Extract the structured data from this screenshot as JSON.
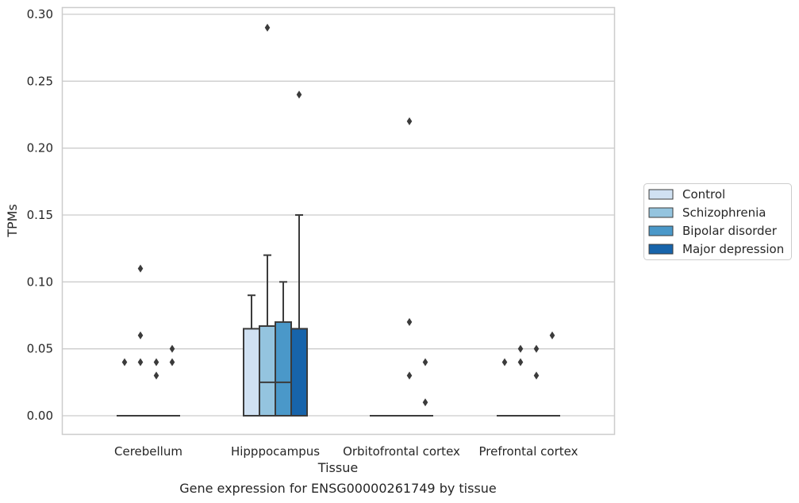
{
  "chart_data": {
    "type": "box",
    "title": "Gene expression for ENSG00000261749 by tissue",
    "xlabel": "Tissue",
    "ylabel": "TPMs",
    "ylim": [
      -0.014,
      0.305
    ],
    "yticks": [
      0.0,
      0.05,
      0.1,
      0.15,
      0.2,
      0.25,
      0.3
    ],
    "ytick_labels": [
      "0.00",
      "0.05",
      "0.10",
      "0.15",
      "0.20",
      "0.25",
      "0.30"
    ],
    "grid": true,
    "legend_position": "right",
    "categories": [
      "Cerebellum",
      "Hipppocampus",
      "Orbitofrontal cortex",
      "Prefrontal cortex"
    ],
    "series": [
      {
        "name": "Control",
        "color": "#d0e1f2",
        "boxes": [
          {
            "q1": 0,
            "median": 0,
            "q3": 0,
            "whisker_low": 0,
            "whisker_high": 0,
            "outliers": [
              0.04
            ]
          },
          {
            "q1": 0,
            "median": 0,
            "q3": 0.065,
            "whisker_low": 0,
            "whisker_high": 0.09,
            "outliers": []
          },
          {
            "q1": 0,
            "median": 0,
            "q3": 0,
            "whisker_low": 0,
            "whisker_high": 0,
            "outliers": []
          },
          {
            "q1": 0,
            "median": 0,
            "q3": 0,
            "whisker_low": 0,
            "whisker_high": 0,
            "outliers": [
              0.04
            ]
          }
        ]
      },
      {
        "name": "Schizophrenia",
        "color": "#94c4df",
        "boxes": [
          {
            "q1": 0,
            "median": 0,
            "q3": 0,
            "whisker_low": 0,
            "whisker_high": 0,
            "outliers": [
              0.11,
              0.06,
              0.04
            ]
          },
          {
            "q1": 0,
            "median": 0.025,
            "q3": 0.067,
            "whisker_low": 0,
            "whisker_high": 0.12,
            "outliers": [
              0.29
            ]
          },
          {
            "q1": 0,
            "median": 0,
            "q3": 0,
            "whisker_low": 0,
            "whisker_high": 0,
            "outliers": []
          },
          {
            "q1": 0,
            "median": 0,
            "q3": 0,
            "whisker_low": 0,
            "whisker_high": 0,
            "outliers": [
              0.05,
              0.04
            ]
          }
        ]
      },
      {
        "name": "Bipolar disorder",
        "color": "#4a98c9",
        "boxes": [
          {
            "q1": 0,
            "median": 0,
            "q3": 0,
            "whisker_low": 0,
            "whisker_high": 0,
            "outliers": [
              0.04,
              0.03
            ]
          },
          {
            "q1": 0,
            "median": 0.025,
            "q3": 0.07,
            "whisker_low": 0,
            "whisker_high": 0.1,
            "outliers": []
          },
          {
            "q1": 0,
            "median": 0,
            "q3": 0,
            "whisker_low": 0,
            "whisker_high": 0,
            "outliers": [
              0.22,
              0.07,
              0.03
            ]
          },
          {
            "q1": 0,
            "median": 0,
            "q3": 0,
            "whisker_low": 0,
            "whisker_high": 0,
            "outliers": [
              0.05,
              0.03
            ]
          }
        ]
      },
      {
        "name": "Major depression",
        "color": "#1764ab",
        "boxes": [
          {
            "q1": 0,
            "median": 0,
            "q3": 0,
            "whisker_low": 0,
            "whisker_high": 0,
            "outliers": [
              0.05,
              0.04
            ]
          },
          {
            "q1": 0,
            "median": 0,
            "q3": 0.065,
            "whisker_low": 0,
            "whisker_high": 0.15,
            "outliers": [
              0.24
            ]
          },
          {
            "q1": 0,
            "median": 0,
            "q3": 0,
            "whisker_low": 0,
            "whisker_high": 0,
            "outliers": [
              0.04,
              0.01
            ]
          },
          {
            "q1": 0,
            "median": 0,
            "q3": 0,
            "whisker_low": 0,
            "whisker_high": 0,
            "outliers": [
              0.06
            ]
          }
        ]
      }
    ]
  }
}
